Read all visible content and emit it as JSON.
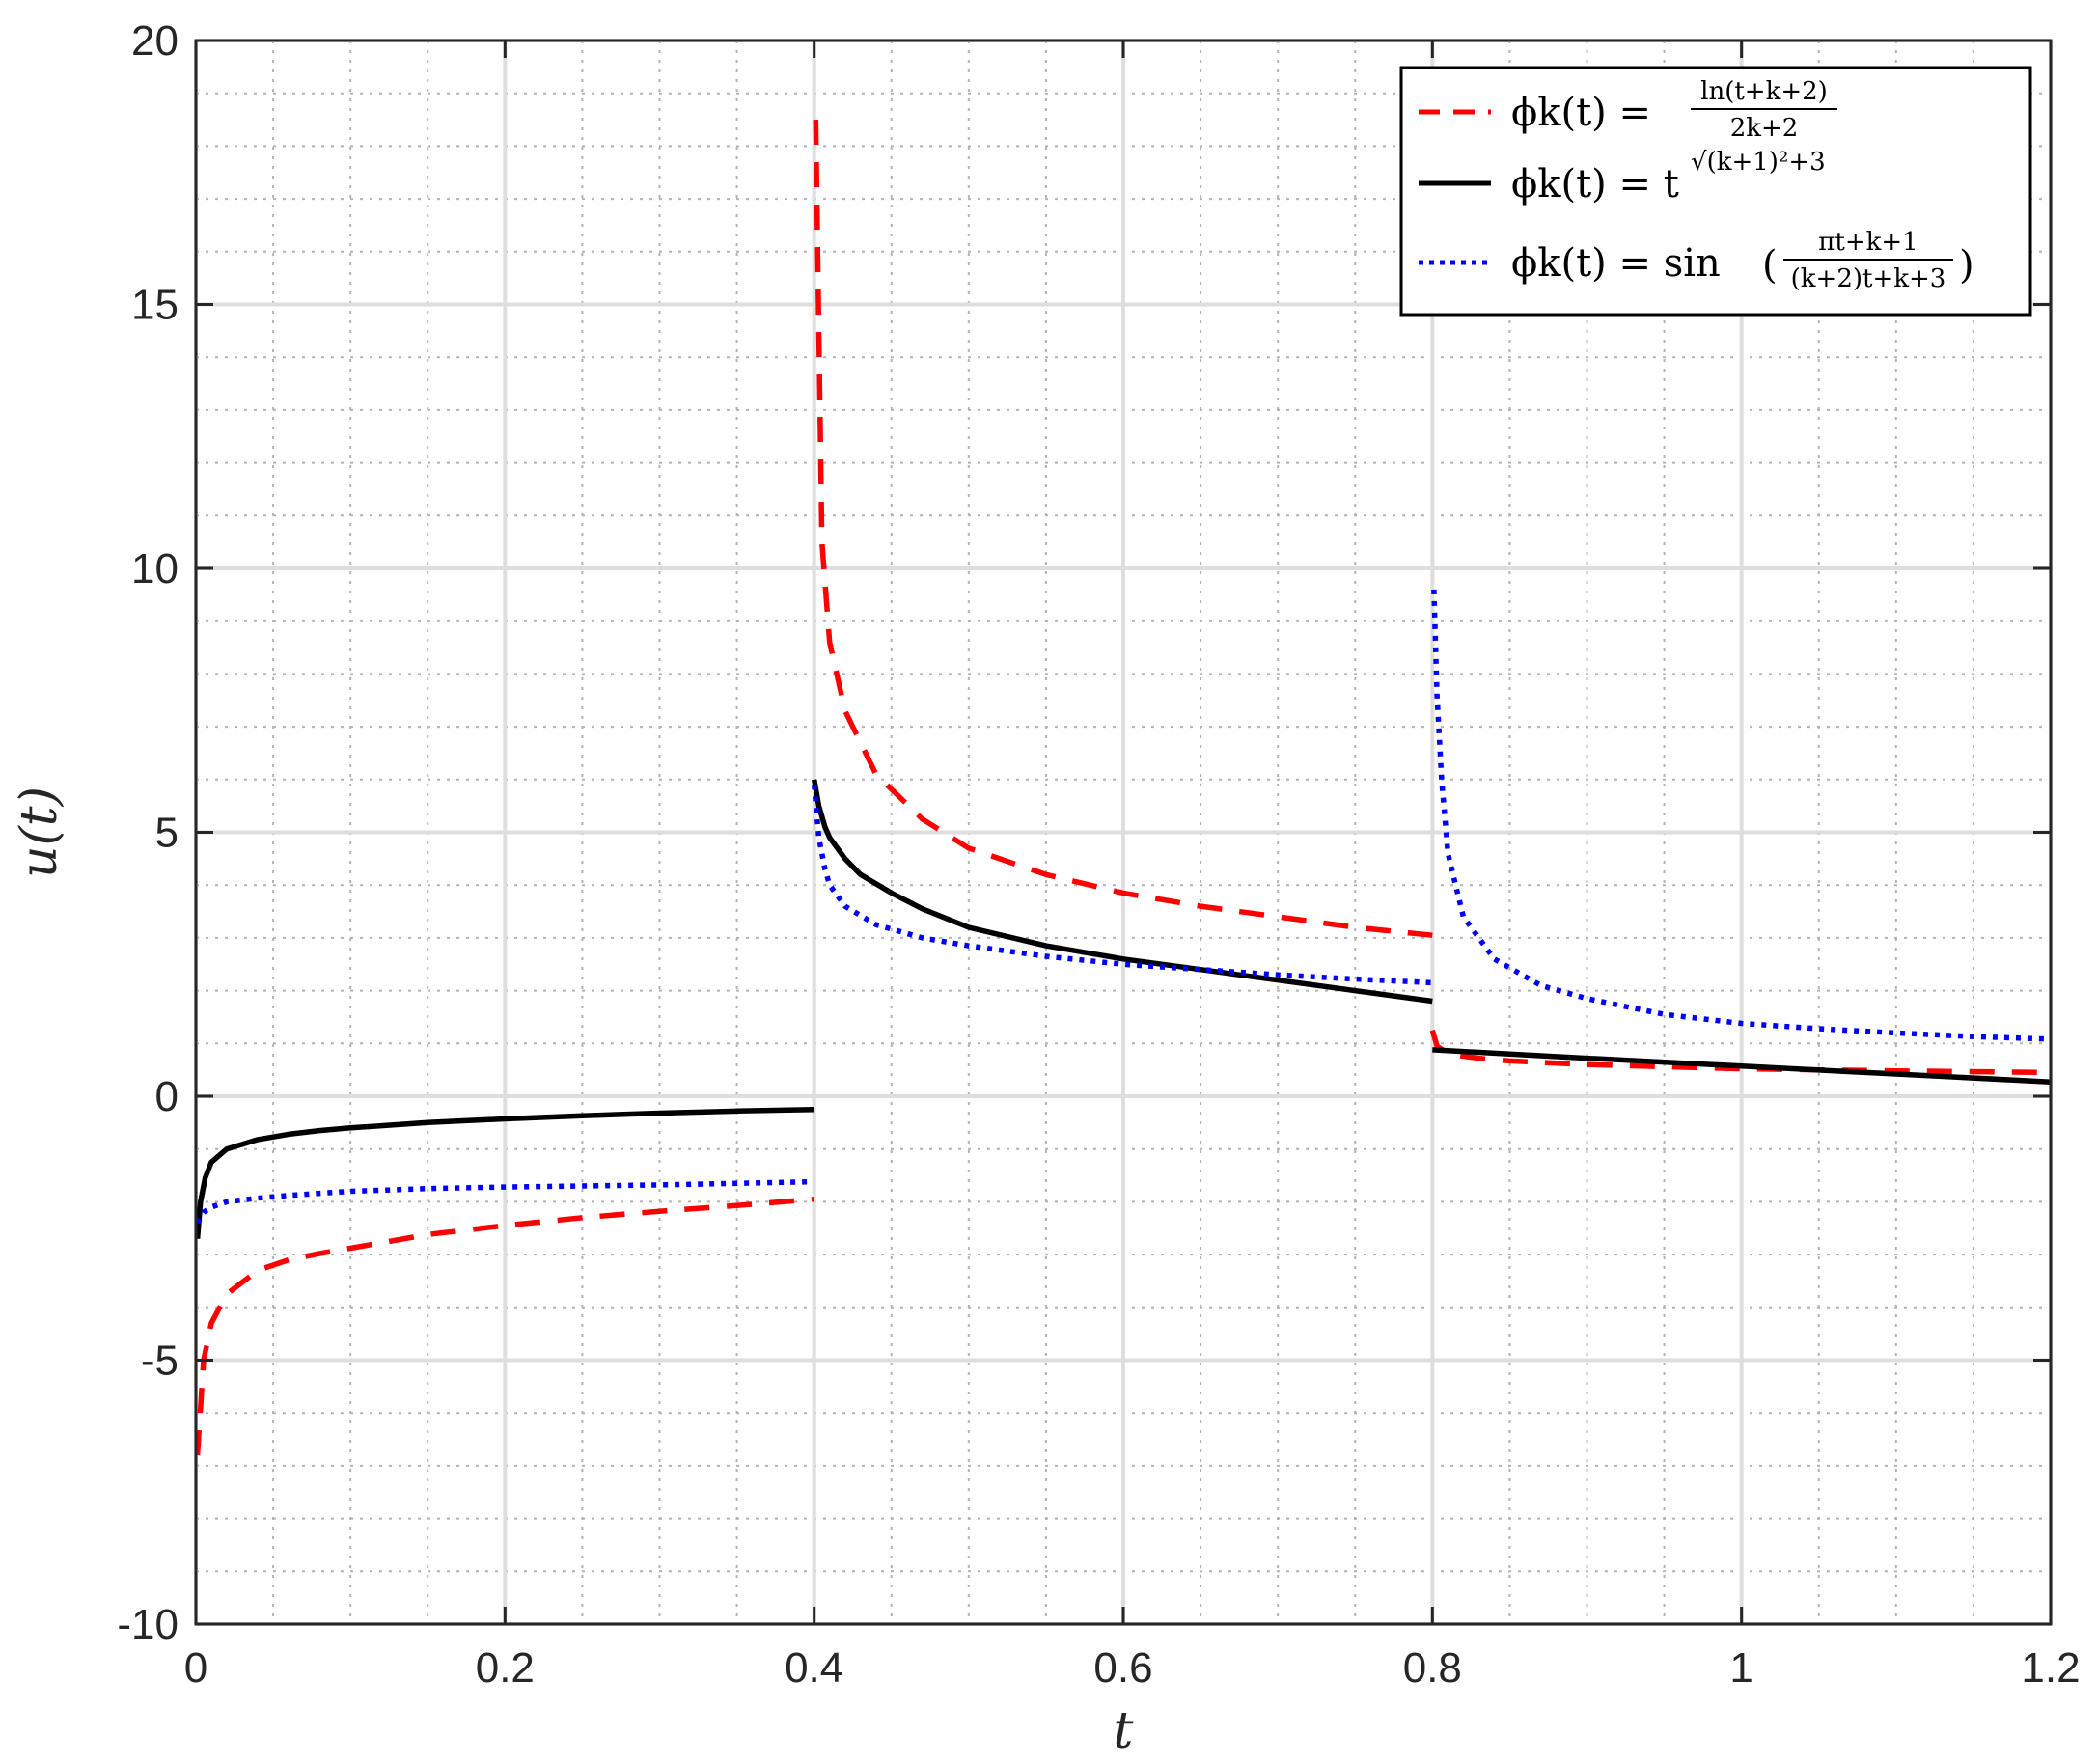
{
  "chart_data": {
    "type": "line",
    "title": "",
    "xlabel": "t",
    "ylabel": "u(t)",
    "xlim": [
      0,
      1.2
    ],
    "ylim": [
      -10,
      20
    ],
    "xticks": [
      0,
      0.2,
      0.4,
      0.6,
      0.8,
      1,
      1.2
    ],
    "xtick_labels": [
      "0",
      "0.2",
      "0.4",
      "0.6",
      "0.8",
      "1",
      "1.2"
    ],
    "yticks": [
      -10,
      -5,
      0,
      5,
      10,
      15,
      20
    ],
    "ytick_labels": [
      "-10",
      "-5",
      "0",
      "5",
      "10",
      "15",
      "20"
    ],
    "grid": "on (major solid, minor dotted)",
    "legend_position": "top-right",
    "series": [
      {
        "name": "φk(t) = ln(t+k+2) / (2k+2)",
        "legend_main": "ϕk(t) =",
        "legend_numerator": "ln(t+k+2)",
        "legend_denominator": "2k+2",
        "color": "#ff0000",
        "style": "dashed",
        "segments": [
          {
            "x": [
              0.001,
              0.005,
              0.01,
              0.02,
              0.04,
              0.06,
              0.08,
              0.1,
              0.15,
              0.2,
              0.25,
              0.3,
              0.35,
              0.4
            ],
            "y": [
              -6.8,
              -5.0,
              -4.3,
              -3.75,
              -3.3,
              -3.1,
              -2.98,
              -2.88,
              -2.62,
              -2.45,
              -2.3,
              -2.18,
              -2.07,
              -1.95
            ]
          },
          {
            "x": [
              0.401,
              0.405,
              0.41,
              0.42,
              0.44,
              0.47,
              0.5,
              0.55,
              0.6,
              0.65,
              0.7,
              0.75,
              0.8
            ],
            "y": [
              18.5,
              10.5,
              8.6,
              7.3,
              6.1,
              5.25,
              4.7,
              4.2,
              3.85,
              3.6,
              3.4,
              3.2,
              3.05
            ]
          },
          {
            "x": [
              0.8,
              0.803,
              0.81,
              0.83,
              0.85,
              0.9,
              1.0,
              1.1,
              1.2
            ],
            "y": [
              1.25,
              0.95,
              0.8,
              0.72,
              0.67,
              0.6,
              0.52,
              0.48,
              0.45
            ]
          }
        ]
      },
      {
        "name": "φk(t) = t^√((k+1)²+3)",
        "legend_main": "ϕk(t) = t",
        "legend_exponent": "√(k+1)²+3",
        "color": "#000000",
        "style": "solid",
        "segments": [
          {
            "x": [
              0.001,
              0.003,
              0.006,
              0.01,
              0.02,
              0.04,
              0.06,
              0.08,
              0.1,
              0.15,
              0.2,
              0.25,
              0.3,
              0.35,
              0.4
            ],
            "y": [
              -2.7,
              -2.0,
              -1.55,
              -1.25,
              -1.0,
              -0.82,
              -0.72,
              -0.65,
              -0.6,
              -0.5,
              -0.43,
              -0.37,
              -0.32,
              -0.28,
              -0.25
            ]
          },
          {
            "x": [
              0.4,
              0.403,
              0.407,
              0.41,
              0.42,
              0.43,
              0.45,
              0.47,
              0.5,
              0.55,
              0.6,
              0.65,
              0.7,
              0.75,
              0.8
            ],
            "y": [
              6.0,
              5.5,
              5.1,
              4.9,
              4.5,
              4.2,
              3.85,
              3.55,
              3.2,
              2.85,
              2.6,
              2.4,
              2.2,
              2.0,
              1.8
            ]
          },
          {
            "x": [
              0.8,
              0.85,
              0.9,
              1.0,
              1.1,
              1.2
            ],
            "y": [
              0.88,
              0.8,
              0.72,
              0.57,
              0.42,
              0.27
            ]
          }
        ]
      },
      {
        "name": "φk(t) = sin((πt+k+1) / ((k+2)t+k+3))",
        "legend_main": "ϕk(t) = sin",
        "legend_numerator": "πt+k+1",
        "legend_denominator": "(k+2)t+k+3",
        "color": "#0000ff",
        "style": "dotted",
        "segments": [
          {
            "x": [
              0.001,
              0.005,
              0.01,
              0.02,
              0.04,
              0.06,
              0.08,
              0.1,
              0.15,
              0.2,
              0.25,
              0.3,
              0.35,
              0.4
            ],
            "y": [
              -2.4,
              -2.2,
              -2.1,
              -2.0,
              -1.93,
              -1.88,
              -1.84,
              -1.8,
              -1.75,
              -1.72,
              -1.7,
              -1.68,
              -1.65,
              -1.62
            ]
          },
          {
            "x": [
              0.4,
              0.403,
              0.407,
              0.41,
              0.42,
              0.44,
              0.47,
              0.5,
              0.55,
              0.6,
              0.65,
              0.7,
              0.75,
              0.8
            ],
            "y": [
              5.9,
              4.9,
              4.3,
              4.0,
              3.6,
              3.25,
              3.0,
              2.85,
              2.65,
              2.5,
              2.4,
              2.3,
              2.22,
              2.15
            ]
          },
          {
            "x": [
              0.801,
              0.803,
              0.806,
              0.81,
              0.82,
              0.84,
              0.87,
              0.9,
              0.95,
              1.0,
              1.05,
              1.1,
              1.15,
              1.2
            ],
            "y": [
              9.6,
              7.6,
              6.0,
              4.6,
              3.4,
              2.6,
              2.1,
              1.85,
              1.55,
              1.38,
              1.28,
              1.2,
              1.13,
              1.08
            ]
          }
        ]
      }
    ]
  }
}
